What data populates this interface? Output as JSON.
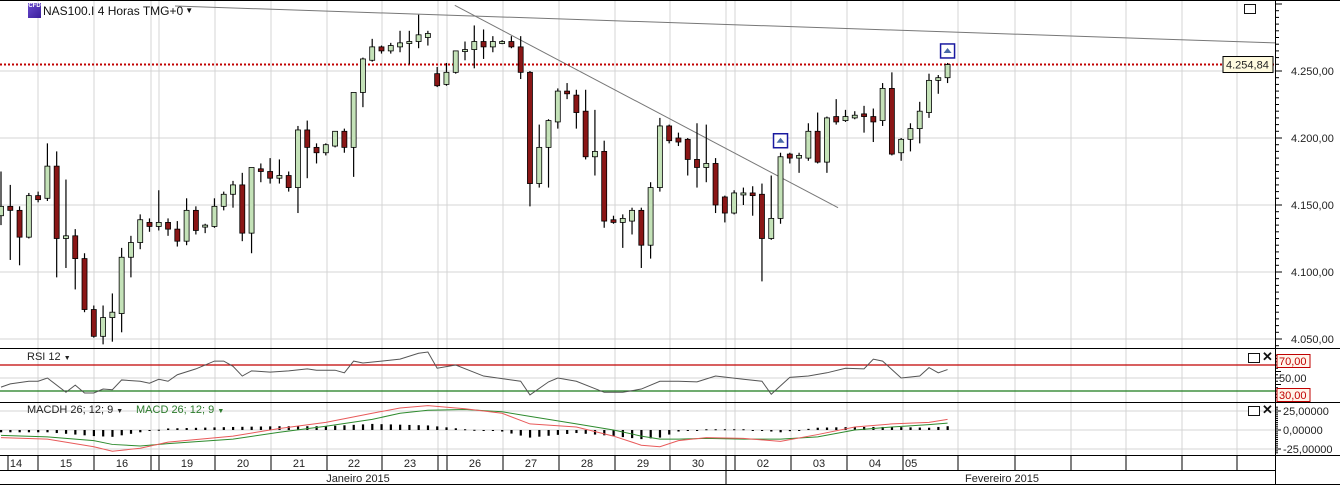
{
  "header": {
    "title": "NAS100.I 4 Horas TMG+0",
    "icon_text": "CFD",
    "dropdown_icon": "caret-down-icon"
  },
  "indicators": {
    "rsi_label": "RSI 12",
    "macdh_label": "MACDH 26; 12; 9",
    "macd_label": "MACD 26; 12; 9"
  },
  "colors": {
    "bull": "#c4e2b8",
    "bear": "#8a1616",
    "price_line": "#c00000",
    "rsi_upper": "#c00000",
    "rsi_lower": "#1a7a1a",
    "macd": "#e85a5a",
    "signal": "#2e8b2e",
    "marker": "#1a1aa0"
  },
  "chart_data": {
    "type": "candlestick",
    "symbol": "NAS100.I",
    "timeframe": "4 Horas",
    "price_axis": {
      "ticks": [
        "4.050,00",
        "4.100,00",
        "4.150,00",
        "4.200,00",
        "4.250,00"
      ],
      "tick_values": [
        4050,
        4100,
        4150,
        4200,
        4250
      ],
      "range": [
        4043,
        4303
      ]
    },
    "current_price": {
      "value": 4254.84,
      "label": "4.254,84"
    },
    "x_labels": [
      "14",
      "15",
      "16",
      "19",
      "20",
      "21",
      "22",
      "23",
      "26",
      "27",
      "28",
      "29",
      "30",
      "02",
      "03",
      "04",
      "05"
    ],
    "months": [
      "Janeiro 2015",
      "Fevereiro 2015"
    ],
    "ohlc": [
      [
        4142,
        4175,
        4135,
        4149
      ],
      [
        4149,
        4165,
        4109,
        4146
      ],
      [
        4146,
        4149,
        4105,
        4126
      ],
      [
        4126,
        4159,
        4125,
        4157
      ],
      [
        4157,
        4160,
        4152,
        4154
      ],
      [
        4155,
        4196,
        4153,
        4179
      ],
      [
        4179,
        4190,
        4096,
        4125
      ],
      [
        4125,
        4169,
        4103,
        4127
      ],
      [
        4127,
        4132,
        4087,
        4110
      ],
      [
        4110,
        4114,
        4070,
        4072
      ],
      [
        4072,
        4075,
        4051,
        4052
      ],
      [
        4052,
        4075,
        4046,
        4066
      ],
      [
        4066,
        4084,
        4048,
        4070
      ],
      [
        4069,
        4118,
        4055,
        4111
      ],
      [
        4111,
        4127,
        4096,
        4122
      ],
      [
        4122,
        4143,
        4117,
        4139
      ],
      [
        4137,
        4140,
        4130,
        4134
      ],
      [
        4134,
        4161,
        4131,
        4137
      ],
      [
        4137,
        4140,
        4127,
        4132
      ],
      [
        4132,
        4138,
        4119,
        4123
      ],
      [
        4123,
        4155,
        4120,
        4146
      ],
      [
        4146,
        4149,
        4128,
        4131
      ],
      [
        4134,
        4136,
        4129,
        4135
      ],
      [
        4134,
        4155,
        4133,
        4149
      ],
      [
        4149,
        4160,
        4146,
        4158
      ],
      [
        4158,
        4168,
        4148,
        4165
      ],
      [
        4165,
        4174,
        4123,
        4129
      ],
      [
        4129,
        4178,
        4114,
        4178
      ],
      [
        4177,
        4181,
        4167,
        4175
      ],
      [
        4175,
        4185,
        4166,
        4170
      ],
      [
        4170,
        4184,
        4166,
        4172
      ],
      [
        4172,
        4175,
        4160,
        4163
      ],
      [
        4163,
        4209,
        4144,
        4206
      ],
      [
        4206,
        4213,
        4170,
        4193
      ],
      [
        4193,
        4196,
        4181,
        4189
      ],
      [
        4189,
        4196,
        4187,
        4195
      ],
      [
        4194,
        4205,
        4193,
        4205
      ],
      [
        4205,
        4207,
        4189,
        4193
      ],
      [
        4193,
        4234,
        4171,
        4234
      ],
      [
        4234,
        4260,
        4223,
        4259
      ],
      [
        4258,
        4274,
        4257,
        4268
      ],
      [
        4268,
        4269,
        4263,
        4265
      ],
      [
        4265,
        4271,
        4263,
        4269
      ],
      [
        4268,
        4280,
        4264,
        4271
      ],
      [
        4271,
        4280,
        4255,
        4272
      ],
      [
        4272,
        4292,
        4267,
        4277
      ],
      [
        4275,
        4280,
        4269,
        4278
      ],
      [
        4248,
        4253,
        4238,
        4239
      ],
      [
        4240,
        4256,
        4239,
        4249
      ],
      [
        4249,
        4265,
        4248,
        4265
      ],
      [
        4265,
        4272,
        4258,
        4266
      ],
      [
        4266,
        4284,
        4252,
        4272
      ],
      [
        4272,
        4281,
        4259,
        4268
      ],
      [
        4268,
        4276,
        4264,
        4272
      ],
      [
        4271,
        4273,
        4270,
        4272
      ],
      [
        4272,
        4276,
        4267,
        4268
      ],
      [
        4268,
        4276,
        4244,
        4249
      ],
      [
        4249,
        4250,
        4149,
        4166
      ],
      [
        4166,
        4210,
        4163,
        4193
      ],
      [
        4193,
        4214,
        4163,
        4213
      ],
      [
        4212,
        4237,
        4207,
        4235
      ],
      [
        4235,
        4241,
        4229,
        4233
      ],
      [
        4232,
        4236,
        4207,
        4219
      ],
      [
        4220,
        4236,
        4184,
        4186
      ],
      [
        4186,
        4221,
        4172,
        4190
      ],
      [
        4190,
        4198,
        4133,
        4138
      ],
      [
        4139,
        4142,
        4136,
        4137
      ],
      [
        4137,
        4143,
        4118,
        4140
      ],
      [
        4138,
        4148,
        4128,
        4146
      ],
      [
        4146,
        4148,
        4103,
        4120
      ],
      [
        4120,
        4167,
        4110,
        4163
      ],
      [
        4163,
        4215,
        4160,
        4209
      ],
      [
        4209,
        4210,
        4196,
        4198
      ],
      [
        4200,
        4204,
        4194,
        4197
      ],
      [
        4199,
        4200,
        4172,
        4184
      ],
      [
        4184,
        4211,
        4163,
        4178
      ],
      [
        4178,
        4210,
        4167,
        4181
      ],
      [
        4181,
        4185,
        4144,
        4150
      ],
      [
        4156,
        4157,
        4137,
        4144
      ],
      [
        4144,
        4161,
        4143,
        4159
      ],
      [
        4158,
        4163,
        4150,
        4159
      ],
      [
        4159,
        4164,
        4142,
        4157
      ],
      [
        4158,
        4166,
        4093,
        4125
      ],
      [
        4125,
        4172,
        4124,
        4140
      ],
      [
        4140,
        4189,
        4136,
        4186
      ],
      [
        4188,
        4189,
        4181,
        4185
      ],
      [
        4185,
        4189,
        4174,
        4187
      ],
      [
        4185,
        4211,
        4183,
        4205
      ],
      [
        4205,
        4219,
        4181,
        4182
      ],
      [
        4182,
        4216,
        4174,
        4215
      ],
      [
        4216,
        4229,
        4210,
        4212
      ],
      [
        4213,
        4221,
        4212,
        4216
      ],
      [
        4215,
        4220,
        4214,
        4217
      ],
      [
        4218,
        4224,
        4204,
        4216
      ],
      [
        4216,
        4222,
        4197,
        4212
      ],
      [
        4213,
        4241,
        4209,
        4237
      ],
      [
        4237,
        4249,
        4187,
        4188
      ],
      [
        4189,
        4200,
        4183,
        4199
      ],
      [
        4199,
        4211,
        4190,
        4207
      ],
      [
        4207,
        4227,
        4196,
        4220
      ],
      [
        4219,
        4248,
        4215,
        4243
      ],
      [
        4243,
        4247,
        4233,
        4245
      ],
      [
        4245,
        4256,
        4241,
        4254.84
      ]
    ],
    "trendlines": [
      {
        "name": "resistance-trendline",
        "from": [
          18.75,
          4298.5
        ],
        "to": [
          137.3,
          4271
        ]
      },
      {
        "name": "downtrend-trendline",
        "from": [
          48.9,
          4299
        ],
        "to": [
          90.2,
          4148
        ]
      }
    ],
    "signal_markers": [
      {
        "index": 84,
        "type": "buy-arrow"
      },
      {
        "index": 102,
        "type": "buy-arrow"
      }
    ],
    "rsi": {
      "period": 12,
      "range": [
        0,
        100
      ],
      "levels": {
        "upper": 70,
        "mid": 50,
        "lower": 30
      },
      "level_labels": {
        "upper": "70,00",
        "mid": "50,00",
        "lower": "30,00"
      },
      "points": [
        [
          0,
          36
        ],
        [
          1,
          41
        ],
        [
          3,
          45
        ],
        [
          4,
          45
        ],
        [
          5,
          50
        ],
        [
          7,
          28
        ],
        [
          8,
          39
        ],
        [
          9,
          27
        ],
        [
          10,
          27
        ],
        [
          11,
          33
        ],
        [
          12,
          32
        ],
        [
          13,
          47
        ],
        [
          15,
          45
        ],
        [
          16,
          42
        ],
        [
          17,
          48
        ],
        [
          18,
          45
        ],
        [
          19,
          55
        ],
        [
          21,
          64
        ],
        [
          23,
          76
        ],
        [
          24,
          76
        ],
        [
          25,
          68
        ],
        [
          26,
          53
        ],
        [
          27,
          61
        ],
        [
          29,
          59
        ],
        [
          31,
          61
        ],
        [
          33,
          64
        ],
        [
          34,
          62
        ],
        [
          36,
          62
        ],
        [
          37,
          58
        ],
        [
          38,
          76
        ],
        [
          39,
          73
        ],
        [
          41,
          76
        ],
        [
          43,
          79
        ],
        [
          45,
          88
        ],
        [
          46,
          90
        ],
        [
          47,
          65
        ],
        [
          49,
          70
        ],
        [
          52,
          53
        ],
        [
          56,
          45
        ],
        [
          57,
          24
        ],
        [
          59,
          44
        ],
        [
          60,
          50
        ],
        [
          62,
          45
        ],
        [
          65,
          28
        ],
        [
          67,
          28
        ],
        [
          69,
          33
        ],
        [
          71,
          45
        ],
        [
          73,
          45
        ],
        [
          75,
          44
        ],
        [
          77,
          53
        ],
        [
          80,
          48
        ],
        [
          82,
          45
        ],
        [
          83,
          25
        ],
        [
          85,
          51
        ],
        [
          87,
          53
        ],
        [
          89,
          58
        ],
        [
          91,
          65
        ],
        [
          93,
          64
        ],
        [
          94,
          79
        ],
        [
          95,
          76
        ],
        [
          97,
          50
        ],
        [
          99,
          53
        ],
        [
          100,
          66
        ],
        [
          101,
          58
        ],
        [
          102,
          63
        ]
      ]
    },
    "macd": {
      "params": "26; 12; 9",
      "axis_labels": [
        "25,00000",
        "0,00000",
        "-25,00000"
      ],
      "axis_values": [
        25,
        0,
        -25
      ],
      "points": [
        [
          0,
          -10,
          -7
        ],
        [
          5,
          -12,
          -9
        ],
        [
          10,
          -22,
          -14
        ],
        [
          12,
          -28,
          -19
        ],
        [
          15,
          -24,
          -21
        ],
        [
          18,
          -16,
          -18
        ],
        [
          25,
          -8,
          -12
        ],
        [
          30,
          2,
          -3
        ],
        [
          35,
          10,
          5
        ],
        [
          40,
          22,
          14
        ],
        [
          43,
          29,
          22
        ],
        [
          46,
          32,
          26
        ],
        [
          50,
          28,
          27
        ],
        [
          54,
          22,
          24
        ],
        [
          57,
          8,
          18
        ],
        [
          62,
          4,
          8
        ],
        [
          66,
          -8,
          0
        ],
        [
          69,
          -20,
          -8
        ],
        [
          71,
          -22,
          -12
        ],
        [
          73,
          -14,
          -12
        ],
        [
          76,
          -10,
          -11
        ],
        [
          80,
          -11,
          -12
        ],
        [
          84,
          -15,
          -12
        ],
        [
          88,
          -6,
          -9
        ],
        [
          92,
          4,
          0
        ],
        [
          96,
          8,
          4
        ],
        [
          100,
          10,
          7
        ],
        [
          102,
          14,
          9
        ]
      ]
    }
  }
}
